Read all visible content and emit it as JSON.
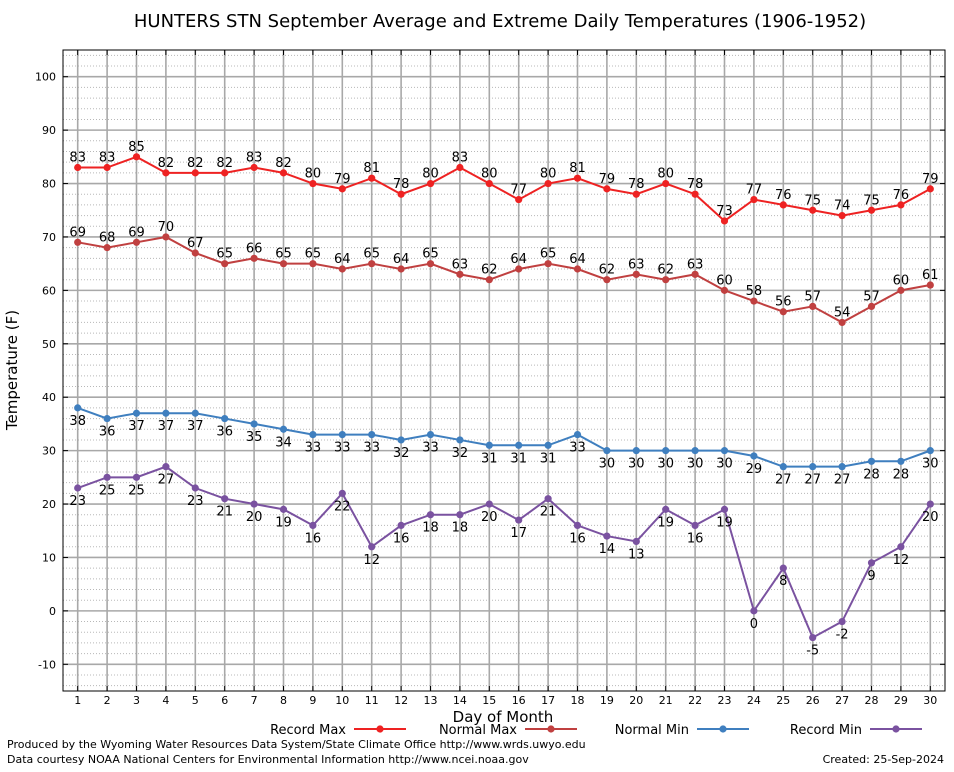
{
  "chart_data": {
    "type": "line",
    "title": "HUNTERS STN September Average and Extreme Daily Temperatures (1906-1952)",
    "xlabel": "Day of Month",
    "ylabel": "Temperature (F)",
    "x": [
      1,
      2,
      3,
      4,
      5,
      6,
      7,
      8,
      9,
      10,
      11,
      12,
      13,
      14,
      15,
      16,
      17,
      18,
      19,
      20,
      21,
      22,
      23,
      24,
      25,
      26,
      27,
      28,
      29,
      30
    ],
    "xlim": [
      0.5,
      30.5
    ],
    "ylim": [
      -15,
      105
    ],
    "yticks": [
      -10,
      0,
      10,
      20,
      30,
      40,
      50,
      60,
      70,
      80,
      90,
      100
    ],
    "grid": true,
    "legend_position": "bottom",
    "series": [
      {
        "name": "Record Max",
        "color": "#ee2222",
        "label_pos": "above",
        "values": [
          83,
          83,
          85,
          82,
          82,
          82,
          83,
          82,
          80,
          79,
          81,
          78,
          80,
          83,
          80,
          77,
          80,
          81,
          79,
          78,
          80,
          78,
          73,
          77,
          76,
          75,
          74,
          75,
          76,
          79
        ]
      },
      {
        "name": "Normal Max",
        "color": "#c04040",
        "label_pos": "above",
        "values": [
          69,
          68,
          69,
          70,
          67,
          65,
          66,
          65,
          65,
          64,
          65,
          64,
          65,
          63,
          62,
          64,
          65,
          64,
          62,
          63,
          62,
          63,
          60,
          58,
          56,
          57,
          54,
          57,
          60,
          61
        ]
      },
      {
        "name": "Normal Min",
        "color": "#3f7fbf",
        "label_pos": "below",
        "values": [
          38,
          36,
          37,
          37,
          37,
          36,
          35,
          34,
          33,
          33,
          33,
          32,
          33,
          32,
          31,
          31,
          31,
          33,
          30,
          30,
          30,
          30,
          30,
          29,
          27,
          27,
          27,
          28,
          28,
          30
        ]
      },
      {
        "name": "Record Min",
        "color": "#7a52a0",
        "label_pos": "below",
        "values": [
          23,
          25,
          25,
          27,
          23,
          21,
          20,
          19,
          16,
          22,
          12,
          16,
          18,
          18,
          20,
          17,
          21,
          16,
          14,
          13,
          19,
          16,
          19,
          0,
          8,
          -5,
          -2,
          9,
          12,
          20
        ]
      }
    ]
  },
  "footer": {
    "produced_by": "Produced by the Wyoming Water Resources Data System/State Climate Office http://www.wrds.uwyo.edu",
    "data_courtesy": "Data courtesy NOAA National Centers for Environmental Information http://www.ncei.noaa.gov",
    "created": "Created: 25-Sep-2024"
  }
}
